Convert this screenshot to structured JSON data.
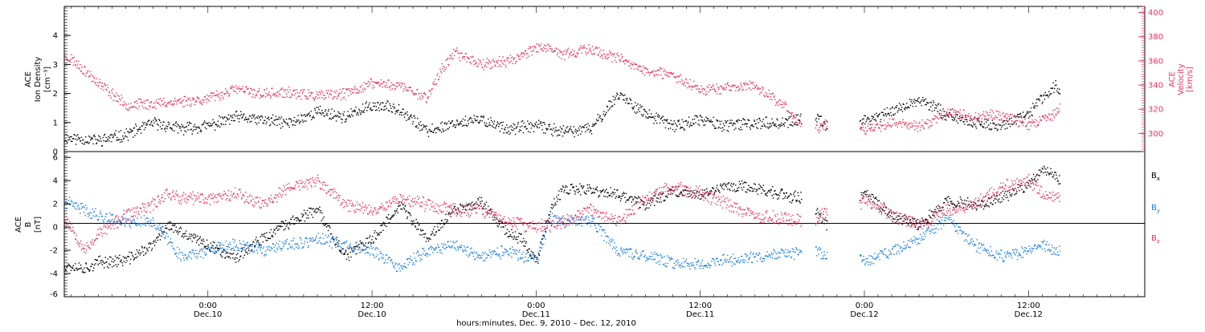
{
  "colors": {
    "black": "#000000",
    "pink": "#e8335e",
    "blue": "#1a7fe0"
  },
  "panel1": {
    "ylabel_1": "ACE",
    "ylabel_2": "Ion Density",
    "ylabel_3": "[cm⁻³]",
    "rlabel_1": "ACE",
    "rlabel_2": "Velocity",
    "rlabel_3": "[km/s]"
  },
  "panel2": {
    "ylabel_1": "ACE",
    "ylabel_2": "B",
    "ylabel_3": "[nT]",
    "legend": [
      {
        "label": "B",
        "sub": "x",
        "color": "#000000"
      },
      {
        "label": "B",
        "sub": "y",
        "color": "#1a7fe0"
      },
      {
        "label": "B",
        "sub": "z",
        "color": "#e8335e"
      }
    ]
  },
  "xaxis": {
    "title": "hours:minutes, Dec. 9, 2010 – Dec. 12, 2010",
    "ticks": [
      {
        "t": 0,
        "l1": "0:00",
        "l2": "Dec.10"
      },
      {
        "t": 12,
        "l1": "12:00",
        "l2": "Dec.10"
      },
      {
        "t": 24,
        "l1": "0:00",
        "l2": "Dec.11"
      },
      {
        "t": 36,
        "l1": "12:00",
        "l2": "Dec.11"
      },
      {
        "t": 48,
        "l1": "0:00",
        "l2": "Dec.12"
      },
      {
        "t": 60,
        "l1": "12:00",
        "l2": "Dec.12"
      }
    ]
  },
  "chart_data": [
    {
      "type": "scatter",
      "xlabel": "hours:minutes, Dec. 9, 2010 – Dec. 12, 2010",
      "ylabel": "ACE Ion Density [cm⁻³]",
      "y2label": "ACE Velocity [km/s]",
      "x_unit": "hours since 0:00 Dec.10, 2010",
      "xlim": [
        -10.5,
        68.5
      ],
      "ylim": [
        0,
        5
      ],
      "y2lim": [
        285,
        405
      ],
      "yticks": [
        0,
        1,
        2,
        3,
        4
      ],
      "y2ticks": [
        300,
        320,
        340,
        360,
        380,
        400
      ],
      "gaps": [
        [
          43.4,
          44.4
        ],
        [
          45.3,
          47.6
        ]
      ],
      "data_end": 62.3,
      "series": [
        {
          "name": "Ion Density",
          "axis": "left",
          "color": "#000000",
          "x": [
            -10.5,
            -8,
            -6,
            -4,
            -2,
            0,
            2,
            4,
            6,
            8,
            10,
            12,
            14,
            16,
            18,
            20,
            22,
            24,
            26,
            28,
            30,
            32,
            34,
            36,
            38,
            40,
            42,
            43.4,
            44.4,
            45.3,
            47.6,
            50,
            52,
            54,
            56,
            58,
            60,
            61,
            62,
            62.3
          ],
          "y": [
            0.5,
            0.4,
            0.6,
            1.0,
            0.8,
            0.9,
            1.2,
            1.1,
            1.0,
            1.4,
            1.2,
            1.6,
            1.5,
            0.7,
            1.0,
            1.1,
            0.8,
            0.9,
            0.7,
            0.8,
            2.0,
            1.3,
            0.9,
            1.1,
            0.9,
            1.0,
            1.0,
            1.1,
            1.2,
            0.9,
            1.0,
            1.4,
            1.8,
            1.3,
            1.0,
            0.9,
            1.3,
            1.9,
            2.3,
            2.0
          ]
        },
        {
          "name": "Velocity",
          "axis": "right",
          "color": "#e8335e",
          "x": [
            -10.5,
            -10,
            -8,
            -6,
            -4,
            -2,
            0,
            2,
            4,
            6,
            8,
            10,
            12,
            14,
            16,
            17,
            18,
            20,
            22,
            24,
            26,
            28,
            30,
            32,
            34,
            36,
            38,
            40,
            42,
            43.4,
            44.4,
            45.3,
            47.6,
            50,
            52,
            54,
            56,
            58,
            60,
            61,
            62,
            62.3
          ],
          "y": [
            364,
            362,
            342,
            324,
            325,
            327,
            329,
            337,
            333,
            334,
            331,
            333,
            342,
            340,
            330,
            352,
            367,
            358,
            360,
            372,
            366,
            370,
            362,
            352,
            348,
            337,
            338,
            340,
            324,
            307,
            305,
            308,
            302,
            310,
            306,
            318,
            314,
            316,
            308,
            312,
            318,
            322
          ]
        }
      ]
    },
    {
      "type": "scatter",
      "xlabel": "hours:minutes, Dec. 9, 2010 – Dec. 12, 2010",
      "ylabel": "ACE B [nT]",
      "x_unit": "hours since 0:00 Dec.10, 2010",
      "xlim": [
        -10.5,
        68.5
      ],
      "ylim": [
        -6,
        6.5
      ],
      "yticks": [
        -6,
        -4,
        -2,
        0,
        2,
        4,
        6
      ],
      "zero_line": true,
      "gaps": [
        [
          43.4,
          44.4
        ],
        [
          45.3,
          47.6
        ]
      ],
      "data_end": 62.3,
      "series": [
        {
          "name": "Bx",
          "color": "#000000",
          "x": [
            -10.5,
            -9,
            -8,
            -6,
            -4,
            -3,
            -2,
            0,
            2,
            4,
            6,
            8,
            10,
            12,
            14,
            16,
            18,
            20,
            22,
            23,
            24,
            25,
            26,
            28,
            30,
            32,
            34,
            36,
            38,
            40,
            42,
            43.4,
            44.4,
            45.3,
            47.6,
            48,
            50,
            52,
            54,
            56,
            58,
            60,
            61,
            62,
            62.3
          ],
          "y": [
            -3.2,
            -3.5,
            -3.0,
            -2.8,
            -1.5,
            0.3,
            -0.5,
            -1.5,
            -2.5,
            -1.0,
            0.5,
            1.5,
            -2.5,
            -1.0,
            2.0,
            -1.0,
            1.5,
            2.2,
            -0.5,
            -1.0,
            -3.0,
            1.5,
            3.3,
            3.2,
            2.8,
            2.0,
            3.2,
            2.8,
            3.6,
            3.4,
            2.8,
            2.5,
            1.5,
            0.2,
            2.5,
            3.0,
            1.0,
            0.2,
            2.3,
            1.9,
            2.6,
            3.8,
            5.0,
            4.3,
            4.0
          ]
        },
        {
          "name": "By",
          "color": "#1a7fe0",
          "x": [
            -10.5,
            -9,
            -8,
            -6,
            -4,
            -2,
            0,
            2,
            4,
            6,
            8,
            10,
            12,
            14,
            16,
            18,
            20,
            22,
            24,
            25,
            26,
            28,
            30,
            32,
            34,
            36,
            38,
            40,
            42,
            43.4,
            44.4,
            45.3,
            47.6,
            48,
            50,
            52,
            54,
            56,
            58,
            60,
            61,
            62,
            62.3
          ],
          "y": [
            2.2,
            1.5,
            1.0,
            0.5,
            0.5,
            -2.5,
            -2.0,
            -1.5,
            -2.0,
            -1.5,
            -1.0,
            -1.5,
            -2.0,
            -3.5,
            -2.0,
            -1.5,
            -2.5,
            -2.0,
            -3.0,
            0.8,
            0.5,
            0.6,
            -2.0,
            -2.5,
            -3.0,
            -3.2,
            -2.8,
            -2.5,
            -2.3,
            -2.2,
            -2.0,
            -2.5,
            -2.5,
            -3.0,
            -2.0,
            -1.0,
            0.8,
            -1.5,
            -2.5,
            -2.0,
            -1.5,
            -2.0,
            -1.8
          ]
        },
        {
          "name": "Bz",
          "color": "#e8335e",
          "x": [
            -10.5,
            -9,
            -8,
            -6,
            -4,
            -3,
            -2,
            0,
            2,
            4,
            6,
            8,
            10,
            12,
            14,
            16,
            18,
            20,
            22,
            24,
            26,
            28,
            30,
            32,
            34,
            36,
            38,
            40,
            42,
            43.4,
            44.4,
            45.3,
            47.6,
            48,
            50,
            52,
            54,
            56,
            58,
            60,
            61,
            62,
            62.3
          ],
          "y": [
            1.0,
            -2.0,
            -0.5,
            1.0,
            2.0,
            3.0,
            2.5,
            2.5,
            3.0,
            2.0,
            3.5,
            4.0,
            2.0,
            1.5,
            2.5,
            2.0,
            1.5,
            1.5,
            0.5,
            0.0,
            0.5,
            1.5,
            0.5,
            2.5,
            3.5,
            3.0,
            2.0,
            1.0,
            0.8,
            0.7,
            0.6,
            1.5,
            1.8,
            2.5,
            1.0,
            0.3,
            1.5,
            2.0,
            3.5,
            4.0,
            3.0,
            2.5,
            2.5
          ]
        }
      ]
    }
  ]
}
